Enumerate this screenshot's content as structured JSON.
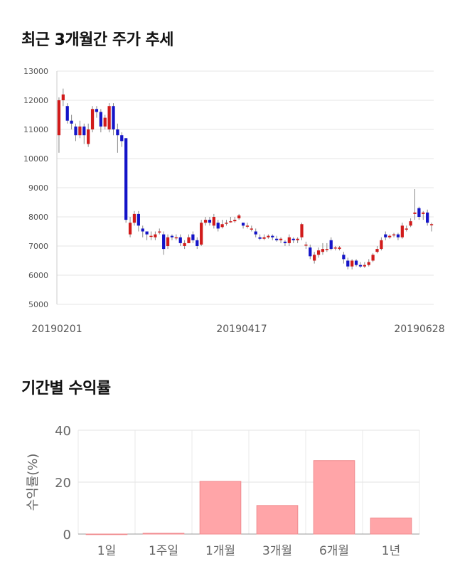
{
  "titles": {
    "price_trend": "최근 3개월간 주가 추세",
    "returns": "기간별 수익률"
  },
  "chart_data": [
    {
      "type": "candlestick",
      "title": "최근 3개월간 주가 추세",
      "ylim": [
        5000,
        13000
      ],
      "yticks": [
        "13000",
        "12000",
        "11000",
        "10000",
        "9000",
        "8000",
        "7000",
        "6000",
        "5000"
      ],
      "x_tick_labels": [
        "20190201",
        "20190417",
        "20190628"
      ],
      "colors": {
        "up": "#d11b1b",
        "down": "#1414c8",
        "wick": "#888888"
      },
      "candles": [
        [
          10800,
          12000,
          12100,
          10200
        ],
        [
          12000,
          12200,
          12400,
          11800
        ],
        [
          11800,
          11300,
          11900,
          11200
        ],
        [
          11300,
          11200,
          11500,
          11000
        ],
        [
          11100,
          10800,
          11200,
          10600
        ],
        [
          10800,
          11100,
          11300,
          10700
        ],
        [
          11100,
          10800,
          11200,
          10500
        ],
        [
          10500,
          11000,
          11200,
          10400
        ],
        [
          11000,
          11700,
          11800,
          10900
        ],
        [
          11700,
          11600,
          11800,
          11400
        ],
        [
          11600,
          11100,
          11700,
          10900
        ],
        [
          11100,
          11400,
          11500,
          11000
        ],
        [
          11000,
          11800,
          11900,
          10900
        ],
        [
          11800,
          11000,
          11900,
          10800
        ],
        [
          11000,
          10800,
          11200,
          10200
        ],
        [
          10800,
          10600,
          10900,
          10400
        ],
        [
          10700,
          7900,
          10700,
          7800
        ],
        [
          7400,
          7800,
          8000,
          7300
        ],
        [
          7800,
          8100,
          8200,
          7700
        ],
        [
          8100,
          7700,
          8200,
          7500
        ],
        [
          7600,
          7500,
          7700,
          7300
        ],
        [
          7500,
          7400,
          7500,
          7200
        ],
        [
          7350,
          7350,
          7500,
          7200
        ],
        [
          7300,
          7400,
          7500,
          7200
        ],
        [
          7500,
          7500,
          7600,
          7400
        ],
        [
          7400,
          6900,
          7500,
          6700
        ],
        [
          7000,
          7300,
          7400,
          6900
        ],
        [
          7350,
          7300,
          7400,
          7200
        ],
        [
          7300,
          7300,
          7400,
          7200
        ],
        [
          7300,
          7100,
          7400,
          7000
        ],
        [
          7000,
          7100,
          7200,
          6900
        ],
        [
          7100,
          7300,
          7400,
          7100
        ],
        [
          7400,
          7200,
          7500,
          7100
        ],
        [
          7200,
          7000,
          7300,
          6900
        ],
        [
          7050,
          7800,
          7900,
          7000
        ],
        [
          7800,
          7900,
          8000,
          7700
        ],
        [
          7900,
          7800,
          8000,
          7700
        ],
        [
          7700,
          8000,
          8100,
          7600
        ],
        [
          7800,
          7600,
          7900,
          7500
        ],
        [
          7650,
          7750,
          7900,
          7600
        ],
        [
          7800,
          7800,
          7900,
          7700
        ],
        [
          7850,
          7850,
          8000,
          7800
        ],
        [
          7850,
          7900,
          8000,
          7800
        ],
        [
          7950,
          8050,
          8100,
          7900
        ],
        [
          7800,
          7700,
          7800,
          7600
        ],
        [
          7700,
          7700,
          7800,
          7600
        ],
        [
          7600,
          7600,
          7700,
          7500
        ],
        [
          7500,
          7400,
          7600,
          7300
        ],
        [
          7300,
          7250,
          7400,
          7200
        ],
        [
          7250,
          7300,
          7400,
          7200
        ],
        [
          7300,
          7350,
          7400,
          7250
        ],
        [
          7350,
          7300,
          7400,
          7200
        ],
        [
          7250,
          7200,
          7350,
          7150
        ],
        [
          7200,
          7250,
          7300,
          7100
        ],
        [
          7150,
          7100,
          7200,
          7000
        ],
        [
          7100,
          7300,
          7400,
          7000
        ],
        [
          7250,
          7200,
          7300,
          7100
        ],
        [
          7200,
          7250,
          7300,
          7100
        ],
        [
          7300,
          7750,
          7800,
          7200
        ],
        [
          7050,
          7050,
          7150,
          6900
        ],
        [
          6950,
          6650,
          7050,
          6550
        ],
        [
          6500,
          6700,
          6800,
          6400
        ],
        [
          6700,
          6850,
          6950,
          6600
        ],
        [
          6800,
          6900,
          7100,
          6700
        ],
        [
          6900,
          6900,
          7100,
          6800
        ],
        [
          7200,
          6900,
          7300,
          6850
        ],
        [
          6950,
          6950,
          7000,
          6850
        ],
        [
          6900,
          6950,
          7000,
          6850
        ],
        [
          6700,
          6550,
          6800,
          6400
        ],
        [
          6500,
          6300,
          6600,
          6200
        ],
        [
          6300,
          6500,
          6550,
          6200
        ],
        [
          6500,
          6350,
          6550,
          6300
        ],
        [
          6350,
          6300,
          6450,
          6250
        ],
        [
          6300,
          6350,
          6450,
          6250
        ],
        [
          6350,
          6450,
          6550,
          6300
        ],
        [
          6500,
          6700,
          6750,
          6450
        ],
        [
          6800,
          6900,
          7000,
          6750
        ],
        [
          6900,
          7200,
          7300,
          6850
        ],
        [
          7400,
          7300,
          7500,
          7200
        ],
        [
          7300,
          7350,
          7400,
          7250
        ],
        [
          7400,
          7400,
          7450,
          7300
        ],
        [
          7400,
          7300,
          7450,
          7200
        ],
        [
          7300,
          7700,
          7800,
          7250
        ],
        [
          7600,
          7600,
          7700,
          7500
        ],
        [
          7700,
          7850,
          7950,
          7650
        ],
        [
          8100,
          8150,
          8950,
          7900
        ],
        [
          8300,
          8000,
          8350,
          7900
        ],
        [
          8100,
          8150,
          8200,
          7900
        ],
        [
          8150,
          7800,
          8250,
          7700
        ],
        [
          7750,
          7750,
          7800,
          7500
        ]
      ]
    },
    {
      "type": "bar",
      "title": "기간별 수익률",
      "ylabel": "수익률(%)",
      "ylim": [
        0,
        40
      ],
      "yticks": [
        "0",
        "20",
        "40"
      ],
      "categories": [
        "1일",
        "1주일",
        "1개월",
        "3개월",
        "6개월",
        "1년"
      ],
      "values": [
        0,
        0.3,
        20.3,
        11.0,
        28.3,
        6.2
      ],
      "bar_color": "#ffa5a8"
    }
  ]
}
